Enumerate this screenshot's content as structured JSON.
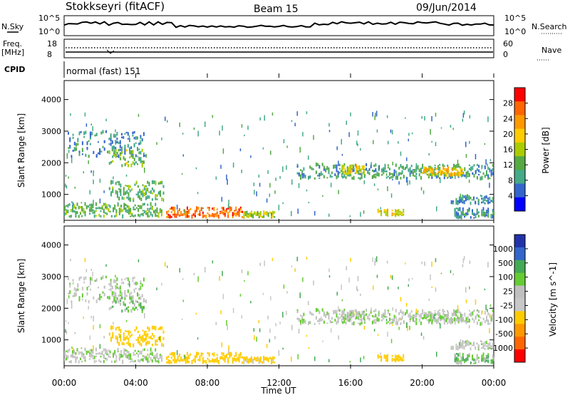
{
  "header": {
    "station": "Stokkseyri (fitACF)",
    "beam": "Beam 15",
    "date": "09/Jun/2014"
  },
  "top_panels": {
    "nsky_label": "N.Sky",
    "nsearch_label": "N.Search",
    "nsky_ticks": [
      "10^5",
      "10^0"
    ],
    "freq_label": "Freq.",
    "freq_unit": "[MHz]",
    "freq_ticks": [
      "18",
      "8"
    ],
    "nave_label": "Nave",
    "nave_ticks": [
      "60",
      "0"
    ],
    "cpid_label": "CPID",
    "cpid_text": "normal (fast) 151"
  },
  "power_panel": {
    "ylabel": "Slant Range [km]",
    "colorbar_label": "Power [dB]",
    "colorbar_ticks": [
      "28",
      "24",
      "20",
      "16",
      "12",
      "8",
      "4"
    ],
    "colors": [
      "#ff0000",
      "#ff6600",
      "#ff9900",
      "#ffcc00",
      "#aacc00",
      "#55aa44",
      "#44aa88",
      "#3366cc",
      "#0000ff"
    ]
  },
  "velocity_panel": {
    "ylabel": "Slant Range [km]",
    "colorbar_label": "Velocity [m s^-1]",
    "colorbar_ticks": [
      "1000",
      "500",
      "100",
      "25",
      "-25",
      "-100",
      "-500",
      "-1000"
    ],
    "colors": [
      "#2233aa",
      "#3366cc",
      "#44aa55",
      "#66cc33",
      "#c0c0c0",
      "#c8c8c8",
      "#ffcc00",
      "#ff9900",
      "#ff6600",
      "#ff0000"
    ]
  },
  "time_axis": {
    "label": "Time UT",
    "ticks": [
      "00:00",
      "04:00",
      "08:00",
      "12:00",
      "16:00",
      "20:00",
      "00:00"
    ]
  },
  "chart_data": {
    "type": "heatmap",
    "x_range_hours": [
      0,
      24
    ],
    "y_range_km": [
      180,
      4600
    ],
    "y_ticks_km": [
      1000,
      2000,
      3000,
      4000
    ],
    "echo_regions": [
      {
        "t0": 0.0,
        "t1": 5.5,
        "r0": 300,
        "r1": 700,
        "power": 10,
        "velocity": 0
      },
      {
        "t0": 0.2,
        "t1": 4.5,
        "r0": 2200,
        "r1": 3000,
        "power": 6,
        "velocity": 0
      },
      {
        "t0": 2.5,
        "t1": 4.5,
        "r0": 1900,
        "r1": 2400,
        "power": 12,
        "velocity": 25
      },
      {
        "t0": 2.5,
        "t1": 5.6,
        "r0": 800,
        "r1": 1400,
        "power": 10,
        "velocity": -150
      },
      {
        "t0": 5.7,
        "t1": 10.0,
        "r0": 280,
        "r1": 580,
        "power": 24,
        "velocity": -200
      },
      {
        "t0": 10.0,
        "t1": 11.8,
        "r0": 280,
        "r1": 440,
        "power": 14,
        "velocity": -100
      },
      {
        "t0": 13.0,
        "t1": 24.0,
        "r0": 1500,
        "r1": 1950,
        "power": 8,
        "velocity": 0
      },
      {
        "t0": 15.5,
        "t1": 16.8,
        "r0": 1650,
        "r1": 1900,
        "power": 16,
        "velocity": 0
      },
      {
        "t0": 17.5,
        "t1": 19.0,
        "r0": 350,
        "r1": 500,
        "power": 16,
        "velocity": -200
      },
      {
        "t0": 20.0,
        "t1": 22.3,
        "r0": 1600,
        "r1": 1850,
        "power": 18,
        "velocity": 0
      },
      {
        "t0": 21.6,
        "t1": 24.0,
        "r0": 700,
        "r1": 950,
        "power": 6,
        "velocity": 0
      },
      {
        "t0": 21.8,
        "t1": 24.0,
        "r0": 250,
        "r1": 560,
        "power": 6,
        "velocity": 50
      }
    ]
  }
}
